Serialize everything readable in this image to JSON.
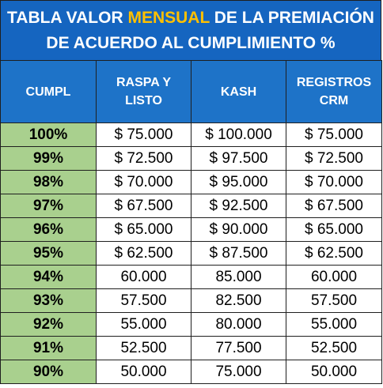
{
  "colors": {
    "title_bg": "#1565c0",
    "header_bg": "#1e73c8",
    "accent": "#ffc000",
    "green": "#a9d08e"
  },
  "title": {
    "line1_pre": "TABLA VALOR ",
    "line1_accent": "MENSUAL",
    "line1_post": " DE LA PREMIACIÓN",
    "line2": "DE ACUERDO AL CUMPLIMIENTO %"
  },
  "headers": {
    "cumpl": "CUMPL",
    "raspa_1": "RASPA Y",
    "raspa_2": "LISTO",
    "kash": "KASH",
    "registros_1": "REGISTROS",
    "registros_2": "CRM"
  },
  "rows": [
    {
      "cumpl": "100%",
      "raspa": "$ 75.000",
      "kash": "$ 100.000",
      "crm": "$ 75.000"
    },
    {
      "cumpl": "99%",
      "raspa": "$ 72.500",
      "kash": "$ 97.500",
      "crm": "$ 72.500"
    },
    {
      "cumpl": "98%",
      "raspa": "$ 70.000",
      "kash": "$ 95.000",
      "crm": "$ 70.000"
    },
    {
      "cumpl": "97%",
      "raspa": "$ 67.500",
      "kash": "$ 92.500",
      "crm": "$ 67.500"
    },
    {
      "cumpl": "96%",
      "raspa": "$ 65.000",
      "kash": "$ 90.000",
      "crm": "$ 65.000"
    },
    {
      "cumpl": "95%",
      "raspa": "$ 62.500",
      "kash": "$ 87.500",
      "crm": "$ 62.500"
    },
    {
      "cumpl": "94%",
      "raspa": "60.000",
      "kash": "85.000",
      "crm": "60.000"
    },
    {
      "cumpl": "93%",
      "raspa": "57.500",
      "kash": "82.500",
      "crm": "57.500"
    },
    {
      "cumpl": "92%",
      "raspa": "55.000",
      "kash": "80.000",
      "crm": "55.000"
    },
    {
      "cumpl": "91%",
      "raspa": "52.500",
      "kash": "77.500",
      "crm": "52.500"
    },
    {
      "cumpl": "90%",
      "raspa": "50.000",
      "kash": "75.000",
      "crm": "50.000"
    }
  ]
}
